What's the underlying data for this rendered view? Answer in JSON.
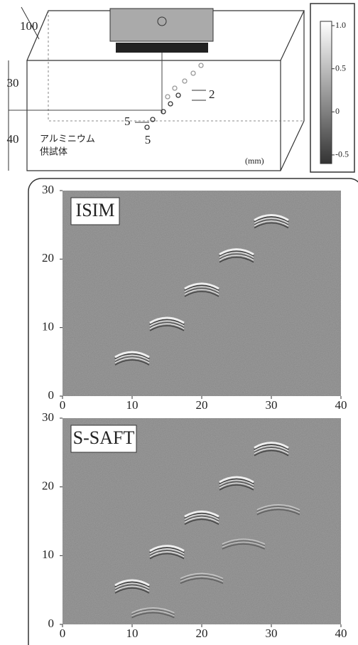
{
  "diagram": {
    "depth": "100",
    "upper": "30",
    "lower": "40",
    "pitch": "2",
    "offset_x": "5",
    "offset_y": "5",
    "material": [
      "アルミニウム",
      "供試体"
    ],
    "unit": "(mm)"
  },
  "colorbar": {
    "lim": [
      -0.6,
      1.05
    ],
    "ticks": [
      {
        "value": 1,
        "label": "1.0"
      },
      0.5,
      0,
      -0.5
    ]
  },
  "panels": [
    {
      "title": "ISIM",
      "xlim": [
        0,
        40
      ],
      "ylim": [
        0,
        30
      ],
      "xticks": [
        0,
        10,
        20,
        30,
        40
      ],
      "yticks": [
        0,
        10,
        20,
        30
      ],
      "reflectors": {
        "x": [
          10,
          15,
          20,
          25,
          30
        ],
        "y": [
          6,
          11,
          16,
          21,
          26
        ]
      }
    },
    {
      "title": "S-SAFT",
      "xlim": [
        0,
        40
      ],
      "ylim": [
        0,
        30
      ],
      "xticks": [
        0,
        10,
        20,
        30,
        40
      ],
      "yticks": [
        0,
        10,
        20,
        30
      ],
      "reflectors": {
        "x": [
          10,
          15,
          20,
          25,
          30
        ],
        "y": [
          6,
          11,
          16,
          21,
          26
        ]
      },
      "ghosts": {
        "x": [
          13,
          20,
          26,
          31
        ],
        "y": [
          2,
          7,
          12,
          17
        ]
      }
    }
  ]
}
